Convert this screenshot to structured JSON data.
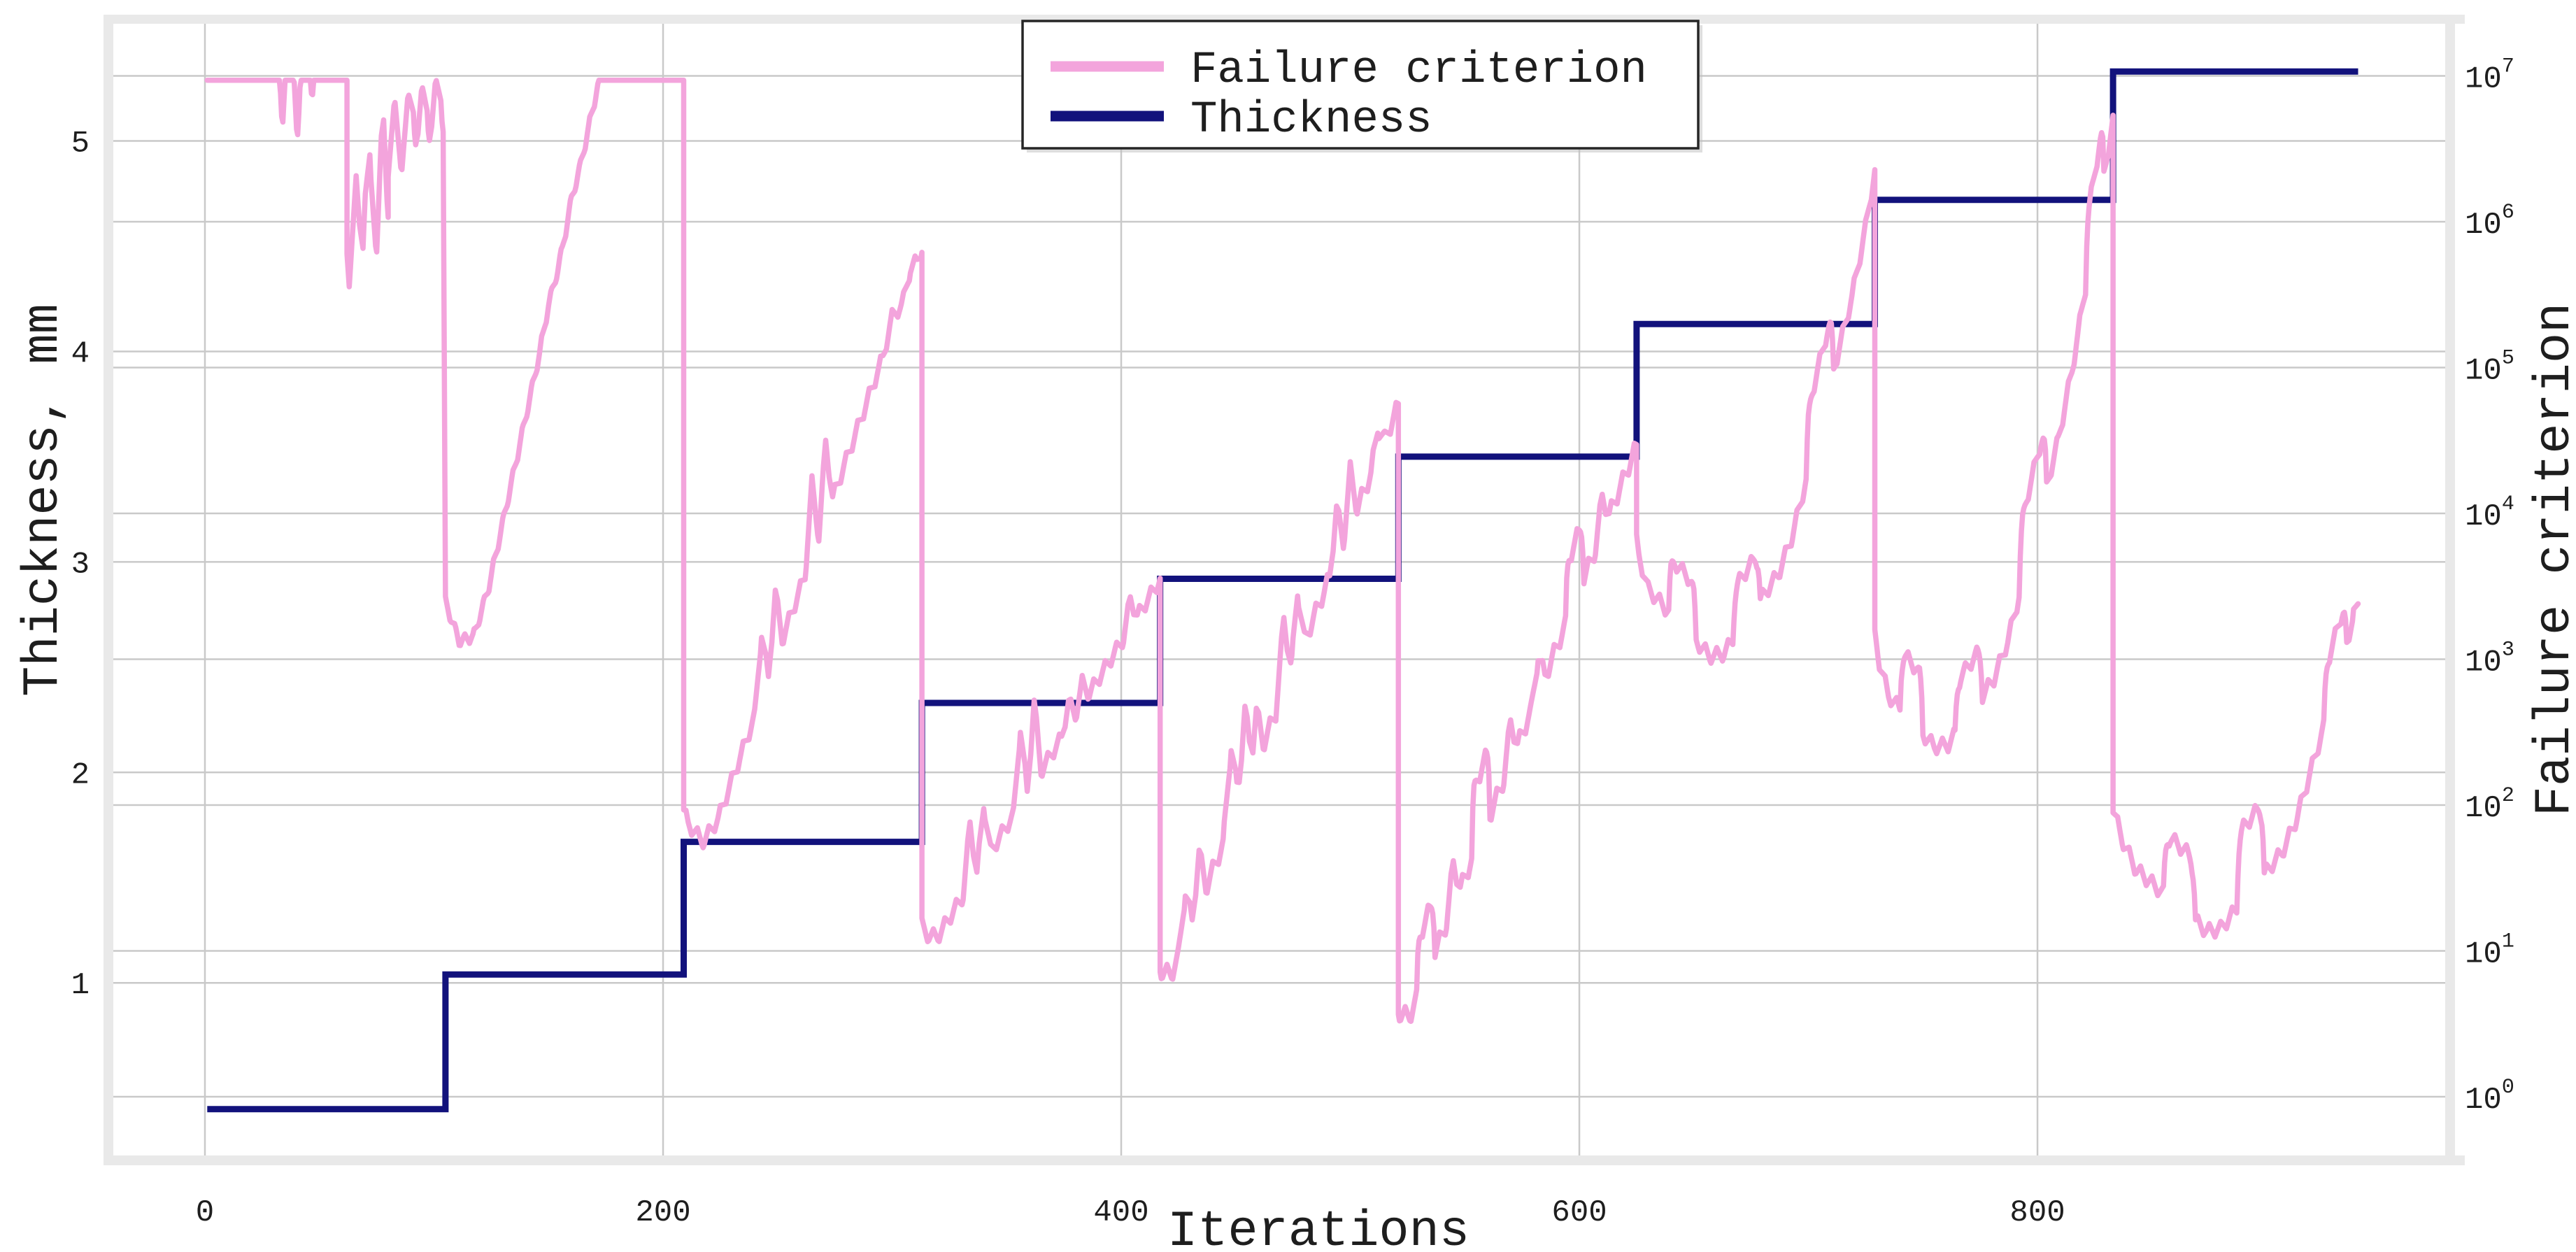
{
  "labels": {
    "x_axis": "Iterations",
    "y_left": "Thickness, mm",
    "y_right": "Failure criterion"
  },
  "legend": {
    "failure": "Failure criterion",
    "thickness": "Thickness"
  },
  "colors": {
    "failure_line": "#F3A4DC",
    "thickness_line": "#12127C",
    "gridline": "#C9C9C9",
    "spine_band": "#E9E9E9",
    "text": "#1E1E1E",
    "legend_border": "#262626",
    "background": "#FFFFFF"
  },
  "chart_data": {
    "type": "line",
    "title": "",
    "xlabel": "Iterations",
    "grid": true,
    "legend_position": "top-center",
    "x_ticks": [
      0,
      200,
      400,
      600,
      800
    ],
    "xlim": [
      -40,
      978
    ],
    "y_left": {
      "label": "Thickness, mm",
      "ticks": [
        1,
        2,
        3,
        4,
        5
      ],
      "lim": [
        0.18,
        5.56
      ]
    },
    "y_right": {
      "label": "Failure criterion",
      "scale": "log",
      "tick_base": "10",
      "tick_exponents": [
        0,
        1,
        2,
        3,
        4,
        5,
        6,
        7
      ],
      "lim_log10": [
        -0.403,
        7.362
      ]
    },
    "series": [
      {
        "name": "Failure criterion",
        "axis": "right",
        "color": "#F3A4DC",
        "style": "noisy-log",
        "units": "log10 of failure criterion",
        "clamp_log10_max": 6.97,
        "end_iteration": 940,
        "phases": [
          {
            "from": 1,
            "to": 62,
            "b0": 5.32,
            "b1": 5.12,
            "amp": 0.5,
            "period": 6.5,
            "off": 0.3,
            "spikes": [
              [
                8,
                -0.12,
                3,
                0
              ],
              [
                30,
                -0.15,
                3,
                0
              ],
              [
                44,
                -0.18,
                3,
                0
              ],
              [
                50,
                -0.12,
                3,
                0
              ]
            ]
          },
          {
            "from": 62,
            "to": 80,
            "b0": 5.9,
            "b1": 6.15,
            "amp": 0.36,
            "period": 6.0,
            "off": 0.0,
            "spikes": [
              [
                70,
                0.3,
                2.5,
                0
              ],
              [
                77,
                0.36,
                2.5,
                0
              ]
            ]
          },
          {
            "from": 80,
            "to": 104,
            "b0": 6.55,
            "b1": 6.75,
            "amp": 0.28,
            "period": 6.0,
            "off": 0.2,
            "spikes": [
              [
                91,
                0.24,
                2,
                0
              ],
              [
                97,
                0.2,
                2,
                0
              ],
              [
                103,
                0.22,
                2,
                0
              ]
            ]
          },
          {
            "from": 105,
            "to": 209,
            "b0": 2.97,
            "b1": 3.2,
            "amp": 0.04,
            "period": 4.2,
            "off": 0.0,
            "spikes": [
              [
                108,
                -0.07,
                3,
                0
              ],
              [
                114,
                -0.08,
                3,
                0
              ],
              [
                121,
                -0.06,
                3,
                0
              ],
              [
                150,
                0.05,
                4,
                0
              ],
              [
                160,
                0.05,
                4,
                0
              ],
              [
                206,
                0.04,
                3,
                0
              ]
            ]
          },
          {
            "from": 209,
            "to": 313,
            "b0": 1.73,
            "b1": 1.8,
            "amp": 0.05,
            "period": 5.0,
            "off": 0.0,
            "spikes": [
              [
                214,
                -0.07,
                3,
                0
              ],
              [
                221,
                -0.06,
                3,
                0
              ],
              [
                243,
                0.44,
                3,
                0
              ],
              [
                249,
                0.46,
                3,
                0
              ],
              [
                265,
                0.5,
                3,
                0
              ],
              [
                271,
                0.52,
                3,
                0
              ],
              [
                300,
                0.1,
                4,
                0
              ],
              [
                308,
                0.08,
                3,
                0
              ]
            ]
          },
          {
            "from": 313,
            "to": 417,
            "b0": 1.1,
            "b1": 1.12,
            "amp": 0.05,
            "period": 5.0,
            "off": 0.4,
            "spikes": [
              [
                318,
                -0.05,
                2,
                0
              ],
              [
                334,
                0.42,
                3,
                0
              ],
              [
                340,
                0.4,
                3,
                0
              ],
              [
                356,
                0.52,
                3,
                0
              ],
              [
                362,
                0.55,
                3,
                0
              ],
              [
                377,
                0.17,
                3,
                0
              ],
              [
                383,
                0.15,
                3,
                0
              ],
              [
                404,
                0.2,
                3,
                0
              ]
            ]
          },
          {
            "from": 417,
            "to": 521,
            "b0": 0.85,
            "b1": 0.78,
            "amp": 0.06,
            "period": 5.0,
            "off": 0.0,
            "spikes": [
              [
                420,
                -0.08,
                2,
                0
              ],
              [
                428,
                0.33,
                3,
                0
              ],
              [
                434,
                0.36,
                3,
                0
              ],
              [
                448,
                0.54,
                3.5,
                0
              ],
              [
                454,
                0.56,
                3.5,
                0
              ],
              [
                459,
                0.35,
                3,
                0
              ],
              [
                471,
                0.5,
                3.5,
                0
              ],
              [
                477,
                0.46,
                3,
                0
              ],
              [
                494,
                0.36,
                3,
                0
              ],
              [
                500,
                0.38,
                3,
                0
              ],
              [
                512,
                0.2,
                3,
                0
              ]
            ]
          },
          {
            "from": 521,
            "to": 625,
            "b0": 0.56,
            "b1": 0.5,
            "amp": 0.06,
            "period": 5.0,
            "off": 0.2,
            "spikes": [
              [
                524,
                -0.08,
                2,
                0
              ],
              [
                533,
                0.38,
                4,
                1
              ],
              [
                545,
                0.3,
                3,
                0
              ],
              [
                557,
                0.46,
                4,
                1
              ],
              [
                570,
                0.28,
                3,
                0
              ],
              [
                582,
                0.26,
                3,
                0
              ],
              [
                598,
                0.4,
                4,
                1
              ],
              [
                610,
                0.25,
                3,
                0
              ]
            ]
          },
          {
            "from": 625,
            "to": 729,
            "b0": 0.32,
            "b1": 0.28,
            "amp": 0.05,
            "period": 5.0,
            "off": 0.0,
            "spikes": [
              [
                628,
                -0.08,
                2,
                0
              ],
              [
                645,
                0.38,
                6,
                1
              ],
              [
                660,
                -0.06,
                3,
                0
              ],
              [
                673,
                0.34,
                6,
                1
              ],
              [
                690,
                -0.06,
                3,
                0
              ],
              [
                705,
                0.44,
                6,
                1
              ],
              [
                722,
                -0.05,
                3,
                0
              ]
            ]
          },
          {
            "from": 729,
            "to": 833,
            "b0": 0.2,
            "b1": 0.12,
            "amp": 0.05,
            "period": 5.0,
            "off": 0.3,
            "spikes": [
              [
                733,
                -0.08,
                2,
                0
              ],
              [
                745,
                0.4,
                5,
                1
              ],
              [
                758,
                -0.06,
                3,
                0
              ],
              [
                770,
                0.34,
                6,
                1
              ],
              [
                784,
                -0.06,
                3,
                0
              ],
              [
                798,
                0.46,
                6,
                1
              ],
              [
                812,
                -0.05,
                3,
                0
              ],
              [
                825,
                0.4,
                4,
                1
              ]
            ]
          },
          {
            "from": 833,
            "to": 940,
            "b0": -0.02,
            "b1": -0.06,
            "amp": 0.05,
            "period": 5.0,
            "off": 0.0,
            "spikes": [
              [
                840,
                -0.06,
                3,
                0
              ],
              [
                862,
                0.42,
                7,
                1
              ],
              [
                877,
                -0.05,
                3,
                0
              ],
              [
                893,
                0.5,
                6,
                1
              ],
              [
                910,
                -0.05,
                3,
                0
              ],
              [
                930,
                0.36,
                5,
                1
              ],
              [
                938,
                0.15,
                2,
                0
              ]
            ]
          }
        ]
      },
      {
        "name": "Thickness",
        "axis": "left",
        "color": "#12127C",
        "style": "step",
        "units": "mm",
        "steps": [
          {
            "from": 1,
            "to": 105,
            "mm": 0.4
          },
          {
            "from": 105,
            "to": 209,
            "mm": 1.04
          },
          {
            "from": 209,
            "to": 313,
            "mm": 1.67
          },
          {
            "from": 313,
            "to": 417,
            "mm": 2.33
          },
          {
            "from": 417,
            "to": 521,
            "mm": 2.92
          },
          {
            "from": 521,
            "to": 625,
            "mm": 3.5
          },
          {
            "from": 625,
            "to": 729,
            "mm": 4.13
          },
          {
            "from": 729,
            "to": 833,
            "mm": 4.72
          },
          {
            "from": 833,
            "to": 940,
            "mm": 5.33
          }
        ]
      }
    ]
  }
}
